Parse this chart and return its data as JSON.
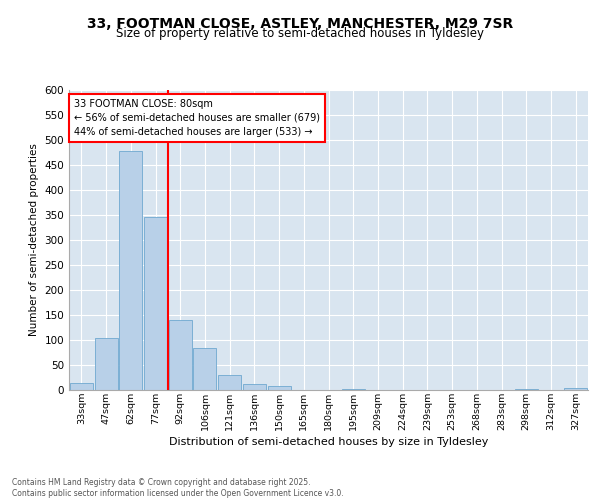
{
  "title1": "33, FOOTMAN CLOSE, ASTLEY, MANCHESTER, M29 7SR",
  "title2": "Size of property relative to semi-detached houses in Tyldesley",
  "xlabel": "Distribution of semi-detached houses by size in Tyldesley",
  "ylabel": "Number of semi-detached properties",
  "footer": "Contains HM Land Registry data © Crown copyright and database right 2025.\nContains public sector information licensed under the Open Government Licence v3.0.",
  "bin_labels": [
    "33sqm",
    "47sqm",
    "62sqm",
    "77sqm",
    "92sqm",
    "106sqm",
    "121sqm",
    "136sqm",
    "150sqm",
    "165sqm",
    "180sqm",
    "195sqm",
    "209sqm",
    "224sqm",
    "239sqm",
    "253sqm",
    "268sqm",
    "283sqm",
    "298sqm",
    "312sqm",
    "327sqm"
  ],
  "bar_values": [
    15,
    105,
    478,
    347,
    140,
    84,
    30,
    12,
    8,
    0,
    0,
    3,
    0,
    0,
    0,
    0,
    0,
    0,
    2,
    0,
    4
  ],
  "bar_color": "#b8d0e8",
  "bar_edge_color": "#6fa8d0",
  "vline_x": 3.5,
  "vline_color": "red",
  "annotation_title": "33 FOOTMAN CLOSE: 80sqm",
  "annotation_line1": "← 56% of semi-detached houses are smaller (679)",
  "annotation_line2": "44% of semi-detached houses are larger (533) →",
  "ylim": [
    0,
    600
  ],
  "yticks": [
    0,
    50,
    100,
    150,
    200,
    250,
    300,
    350,
    400,
    450,
    500,
    550,
    600
  ],
  "plot_bg_color": "#d9e5f0",
  "fig_bg_color": "#ffffff",
  "grid_color": "#ffffff",
  "title1_fontsize": 10,
  "title2_fontsize": 8.5
}
